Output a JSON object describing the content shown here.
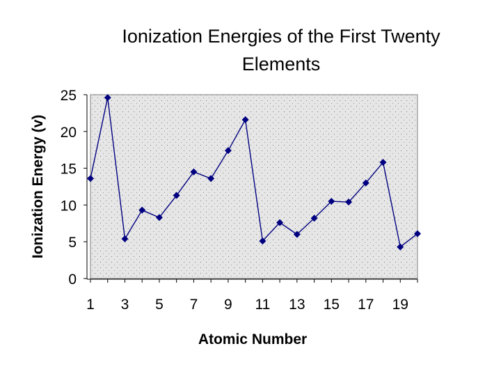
{
  "chart_data": {
    "type": "line",
    "title_lines": [
      "Ionization Energies of the First Twenty",
      "Elements"
    ],
    "xlabel": "Atomic Number",
    "ylabel": "Ionization Energy (v)",
    "x": [
      1,
      2,
      3,
      4,
      5,
      6,
      7,
      8,
      9,
      10,
      11,
      12,
      13,
      14,
      15,
      16,
      17,
      18,
      19,
      20
    ],
    "series": [
      {
        "values": [
          13.6,
          24.6,
          5.4,
          9.3,
          8.3,
          11.3,
          14.5,
          13.6,
          17.4,
          21.6,
          5.1,
          7.6,
          6.0,
          8.2,
          10.5,
          10.4,
          13.0,
          15.8,
          4.3,
          6.1
        ]
      }
    ],
    "xlim": [
      1,
      20
    ],
    "ylim": [
      0,
      25
    ],
    "y_ticks": [
      0,
      5,
      10,
      15,
      20,
      25
    ],
    "x_ticks": [
      1,
      3,
      5,
      7,
      9,
      11,
      13,
      15,
      17,
      19
    ],
    "grid": "dotted",
    "plot_background": "#e6e6e6",
    "series_color": "#000080"
  }
}
